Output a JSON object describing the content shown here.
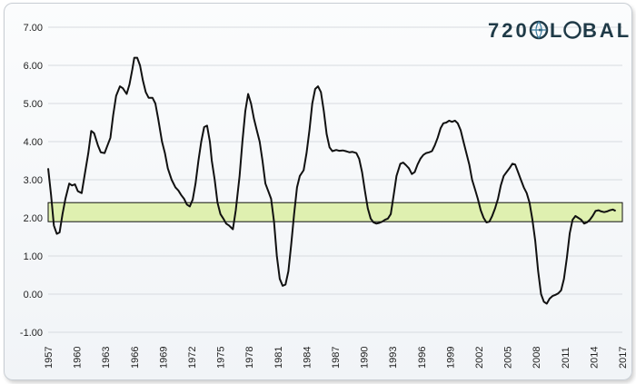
{
  "brand": {
    "logo_prefix": "720",
    "logo_suffix": "BAL",
    "logo_full": "720GLOBAL",
    "logo_color": "#1f3a47",
    "globe_color": "#3e7ea0"
  },
  "chart_data": {
    "type": "line",
    "title": "",
    "xlabel": "",
    "ylabel": "",
    "ylim": [
      -1.0,
      7.0
    ],
    "xlim": [
      1957,
      2017
    ],
    "yticks": [
      "-1.00",
      "0.00",
      "1.00",
      "2.00",
      "3.00",
      "4.00",
      "5.00",
      "6.00",
      "7.00"
    ],
    "xticks": [
      "1957",
      "1960",
      "1963",
      "1966",
      "1969",
      "1972",
      "1975",
      "1978",
      "1981",
      "1984",
      "1987",
      "1990",
      "1993",
      "1996",
      "1999",
      "2002",
      "2005",
      "2008",
      "2011",
      "2014",
      "2017"
    ],
    "grid": true,
    "band": {
      "from": 1.9,
      "to": 2.4,
      "color": "#dff0b0"
    },
    "line_color": "#111111",
    "series": [
      {
        "x": [
          1957.0,
          1957.3,
          1957.6,
          1957.9,
          1958.2,
          1958.5,
          1958.8,
          1959.2,
          1959.5,
          1959.8,
          1960.1,
          1960.5,
          1960.8,
          1961.2,
          1961.5,
          1961.8,
          1962.2,
          1962.5,
          1962.9,
          1963.2,
          1963.5,
          1963.8,
          1964.1,
          1964.5,
          1964.8,
          1965.2,
          1965.5,
          1965.8,
          1966.0,
          1966.3,
          1966.6,
          1966.9,
          1967.2,
          1967.5,
          1967.9,
          1968.2,
          1968.5,
          1968.9,
          1969.2,
          1969.5,
          1969.9,
          1970.3,
          1970.6,
          1970.9,
          1971.2,
          1971.5,
          1971.8,
          1972.1,
          1972.4,
          1972.7,
          1973.0,
          1973.3,
          1973.6,
          1973.9,
          1974.1,
          1974.4,
          1974.7,
          1975.0,
          1975.3,
          1975.6,
          1975.9,
          1976.3,
          1976.6,
          1977.0,
          1977.3,
          1977.6,
          1977.9,
          1978.2,
          1978.5,
          1978.8,
          1979.1,
          1979.4,
          1979.7,
          1980.0,
          1980.3,
          1980.6,
          1980.9,
          1981.2,
          1981.5,
          1981.8,
          1982.1,
          1982.4,
          1982.7,
          1983.0,
          1983.3,
          1983.7,
          1984.0,
          1984.3,
          1984.6,
          1984.9,
          1985.2,
          1985.5,
          1985.8,
          1986.1,
          1986.4,
          1986.7,
          1987.1,
          1987.4,
          1987.8,
          1988.1,
          1988.5,
          1988.8,
          1989.2,
          1989.5,
          1989.8,
          1990.1,
          1990.4,
          1990.7,
          1991.0,
          1991.3,
          1991.6,
          1991.9,
          1992.2,
          1992.5,
          1992.8,
          1993.1,
          1993.4,
          1993.8,
          1994.1,
          1994.4,
          1994.7,
          1995.0,
          1995.3,
          1995.6,
          1995.9,
          1996.2,
          1996.5,
          1996.8,
          1997.1,
          1997.4,
          1997.7,
          1998.0,
          1998.3,
          1998.6,
          1998.9,
          1999.2,
          1999.5,
          1999.8,
          2000.1,
          2000.4,
          2000.7,
          2001.0,
          2001.3,
          2001.6,
          2001.9,
          2002.2,
          2002.5,
          2002.8,
          2003.1,
          2003.4,
          2003.7,
          2004.0,
          2004.3,
          2004.6,
          2004.9,
          2005.2,
          2005.5,
          2005.8,
          2006.1,
          2006.4,
          2006.7,
          2007.0,
          2007.3,
          2007.6,
          2007.9,
          2008.2,
          2008.5,
          2008.8,
          2009.1,
          2009.4,
          2009.7,
          2010.0,
          2010.3,
          2010.6,
          2010.9,
          2011.2,
          2011.5,
          2011.8,
          2012.1,
          2012.4,
          2012.7,
          2013.0,
          2013.3,
          2013.6,
          2013.9,
          2014.2,
          2014.5,
          2014.8,
          2015.1,
          2015.4,
          2015.7,
          2016.0,
          2016.3
        ],
        "y": [
          3.3,
          2.6,
          1.8,
          1.58,
          1.62,
          2.1,
          2.5,
          2.9,
          2.85,
          2.88,
          2.7,
          2.65,
          3.1,
          3.7,
          4.28,
          4.22,
          3.9,
          3.72,
          3.7,
          3.9,
          4.1,
          4.7,
          5.2,
          5.45,
          5.4,
          5.25,
          5.5,
          5.9,
          6.2,
          6.2,
          6.0,
          5.6,
          5.3,
          5.15,
          5.15,
          5.0,
          4.6,
          4.0,
          3.7,
          3.3,
          3.0,
          2.8,
          2.72,
          2.6,
          2.5,
          2.35,
          2.3,
          2.48,
          2.9,
          3.5,
          4.0,
          4.38,
          4.42,
          4.0,
          3.5,
          3.0,
          2.4,
          2.1,
          1.98,
          1.85,
          1.8,
          1.7,
          2.2,
          3.1,
          4.0,
          4.8,
          5.25,
          5.0,
          4.6,
          4.3,
          4.0,
          3.5,
          2.9,
          2.7,
          2.5,
          1.9,
          1.0,
          0.4,
          0.22,
          0.25,
          0.6,
          1.3,
          2.1,
          2.8,
          3.1,
          3.25,
          3.7,
          4.3,
          5.0,
          5.38,
          5.45,
          5.3,
          4.8,
          4.2,
          3.85,
          3.75,
          3.78,
          3.76,
          3.77,
          3.75,
          3.72,
          3.73,
          3.7,
          3.55,
          3.2,
          2.7,
          2.25,
          1.98,
          1.88,
          1.85,
          1.87,
          1.9,
          1.95,
          1.98,
          2.1,
          2.6,
          3.1,
          3.42,
          3.45,
          3.38,
          3.3,
          3.15,
          3.2,
          3.4,
          3.55,
          3.65,
          3.7,
          3.72,
          3.75,
          3.9,
          4.1,
          4.35,
          4.48,
          4.5,
          4.55,
          4.52,
          4.55,
          4.48,
          4.3,
          4.0,
          3.7,
          3.4,
          3.0,
          2.75,
          2.5,
          2.2,
          2.0,
          1.88,
          1.9,
          2.05,
          2.25,
          2.5,
          2.85,
          3.1,
          3.2,
          3.3,
          3.42,
          3.4,
          3.2,
          3.0,
          2.8,
          2.65,
          2.4,
          1.95,
          1.4,
          0.6,
          0.0,
          -0.2,
          -0.25,
          -0.12,
          -0.05,
          -0.02,
          0.02,
          0.1,
          0.4,
          0.95,
          1.6,
          1.95,
          2.05,
          2.0,
          1.95,
          1.85,
          1.88,
          1.95,
          2.05,
          2.18,
          2.2,
          2.17,
          2.15,
          2.17,
          2.2,
          2.22,
          2.18
        ]
      }
    ]
  }
}
